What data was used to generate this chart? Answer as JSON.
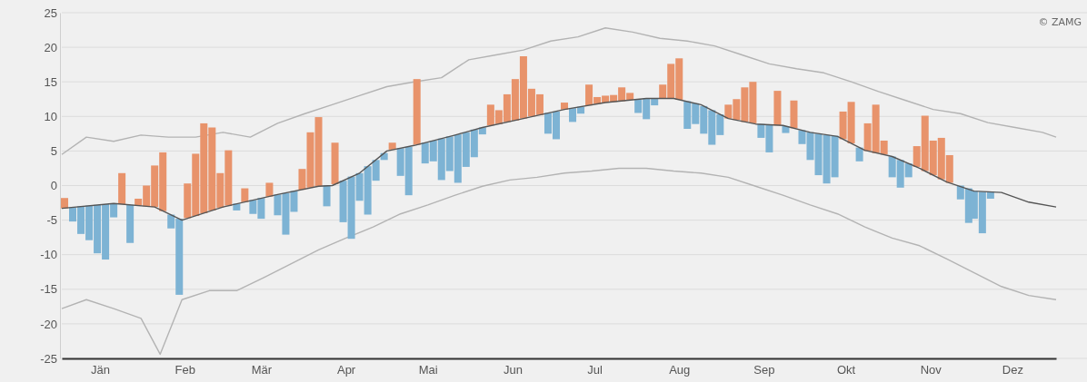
{
  "chart_data": {
    "type": "bar",
    "xlim": [
      "--01-01",
      "--12-31"
    ],
    "ylim": [
      -25,
      25
    ],
    "xticks": [
      {
        "value": "--01-15",
        "label": "Jän"
      },
      {
        "value": "--02-15",
        "label": "Feb"
      },
      {
        "value": "--03-15",
        "label": "Mär"
      },
      {
        "value": "--04-15",
        "label": "Apr"
      },
      {
        "value": "--05-15",
        "label": "Mai"
      },
      {
        "value": "--06-15",
        "label": "Jun"
      },
      {
        "value": "--07-15",
        "label": "Jul"
      },
      {
        "value": "--08-15",
        "label": "Aug"
      },
      {
        "value": "--09-15",
        "label": "Sep"
      },
      {
        "value": "--10-15",
        "label": "Okt"
      },
      {
        "value": "--11-15",
        "label": "Nov"
      },
      {
        "value": "--12-15",
        "label": "Dez"
      }
    ],
    "yticks": [
      25,
      20,
      15,
      10,
      5,
      0,
      -5,
      -10,
      -15,
      -20,
      -25
    ],
    "grid": "y",
    "annotations": [
      "© ZAMG"
    ],
    "series": [
      {
        "type": "line",
        "color": "#b3b3b3",
        "x": [
          "--01-01",
          "--01-10",
          "--01-20",
          "--01-30",
          "--02-09",
          "--02-19",
          "--03-01",
          "--03-11",
          "--03-21",
          "--03-31",
          "--04-10",
          "--04-20",
          "--04-30",
          "--05-10",
          "--05-20",
          "--05-30",
          "--06-09",
          "--06-19",
          "--06-29",
          "--07-09",
          "--07-19",
          "--07-29",
          "--08-08",
          "--08-18",
          "--08-28",
          "--09-07",
          "--09-17",
          "--09-27",
          "--10-07",
          "--10-17",
          "--10-27",
          "--11-06",
          "--11-16",
          "--11-26",
          "--12-06",
          "--12-16",
          "--12-26",
          "--12-31"
        ],
        "values": [
          4.5,
          7,
          6.4,
          7.3,
          7,
          7,
          7.7,
          7,
          9,
          10.4,
          11.7,
          13,
          14.3,
          15,
          15.6,
          18.2,
          18.9,
          19.6,
          20.9,
          21.5,
          22.8,
          22.2,
          21.3,
          20.9,
          20.2,
          18.9,
          17.6,
          16.9,
          16.3,
          15,
          13.6,
          12.3,
          11,
          10.4,
          9.1,
          8.4,
          7.7,
          7
        ]
      },
      {
        "type": "line",
        "color": "#b3b3b3",
        "x": [
          "--01-01",
          "--01-10",
          "--01-20",
          "--01-30",
          "--02-06",
          "--02-14",
          "--02-24",
          "--03-06",
          "--03-16",
          "--03-26",
          "--04-05",
          "--04-15",
          "--04-25",
          "--05-05",
          "--05-15",
          "--05-25",
          "--06-04",
          "--06-14",
          "--06-24",
          "--07-04",
          "--07-14",
          "--07-24",
          "--08-03",
          "--08-13",
          "--08-23",
          "--09-02",
          "--09-12",
          "--09-22",
          "--10-02",
          "--10-12",
          "--10-22",
          "--11-01",
          "--11-11",
          "--11-21",
          "--12-01",
          "--12-11",
          "--12-21",
          "--12-31"
        ],
        "values": [
          -17.8,
          -16.5,
          -17.8,
          -19.2,
          -24.4,
          -16.5,
          -15.2,
          -15.2,
          -13.3,
          -11.3,
          -9.3,
          -7.6,
          -6,
          -4.1,
          -2.8,
          -1.4,
          -0.1,
          0.8,
          1.2,
          1.8,
          2.1,
          2.5,
          2.5,
          2.1,
          1.8,
          1.2,
          -0.1,
          -1.4,
          -2.8,
          -4.1,
          -6,
          -7.6,
          -8.7,
          -10.6,
          -12.6,
          -14.6,
          -15.9,
          -16.5
        ]
      },
      {
        "color": "#e8936b",
        "x": [
          "--01-02",
          "--01-23",
          "--01-29",
          "--02-01",
          "--02-04",
          "--02-07",
          "--02-16",
          "--02-19",
          "--02-22",
          "--02-25",
          "--02-28",
          "--03-03",
          "--03-09",
          "--03-18",
          "--03-30",
          "--04-02",
          "--04-05",
          "--04-11",
          "--05-02",
          "--05-11",
          "--06-07",
          "--06-10",
          "--06-13",
          "--06-16",
          "--06-19",
          "--06-22",
          "--06-25",
          "--07-04",
          "--07-13",
          "--07-16",
          "--07-19",
          "--07-22",
          "--07-25",
          "--07-28",
          "--08-09",
          "--08-12",
          "--08-15",
          "--09-02",
          "--09-05",
          "--09-08",
          "--09-11",
          "--09-20",
          "--09-26",
          "--10-14",
          "--10-17",
          "--10-23",
          "--10-26",
          "--10-29",
          "--11-10",
          "--11-13",
          "--11-16",
          "--11-19",
          "--11-22"
        ],
        "base": [
          -3.3,
          -2.7,
          -2.9,
          -3.0,
          -3.1,
          -3.7,
          -4.7,
          -4.4,
          -4.0,
          -3.6,
          -3.2,
          -2.9,
          -2.4,
          -1.6,
          -0.6,
          -0.3,
          -0.1,
          0.2,
          5.2,
          5.9,
          8.7,
          8.9,
          9.2,
          9.4,
          9.7,
          10.0,
          10.2,
          11,
          11.6,
          11.8,
          12,
          12.1,
          12.2,
          12.4,
          12.6,
          12.6,
          12.4,
          9.7,
          9.5,
          9.2,
          9.0,
          8.7,
          8.3,
          6.7,
          6.1,
          5.0,
          4.7,
          4.5,
          2.7,
          2.1,
          1.5,
          0.9,
          0.4
        ],
        "values": [
          1.5,
          4.5,
          1,
          3,
          6,
          8.5,
          5,
          9,
          13,
          12,
          5,
          8,
          2,
          2,
          3,
          8,
          10,
          6,
          1,
          9.5,
          3,
          2,
          4,
          6,
          9,
          4,
          3,
          1,
          3,
          1,
          1,
          1,
          2,
          1,
          2,
          5,
          6,
          2,
          3,
          5,
          6,
          5,
          4,
          4,
          6,
          4,
          7,
          2,
          3,
          8,
          5,
          6,
          4
        ]
      },
      {
        "color": "#7db3d4",
        "x": [
          "--01-05",
          "--01-08",
          "--01-11",
          "--01-14",
          "--01-17",
          "--01-20",
          "--01-26",
          "--02-10",
          "--02-13",
          "--03-06",
          "--03-12",
          "--03-15",
          "--03-21",
          "--03-24",
          "--03-27",
          "--04-08",
          "--04-14",
          "--04-17",
          "--04-20",
          "--04-23",
          "--04-26",
          "--04-29",
          "--05-05",
          "--05-08",
          "--05-14",
          "--05-17",
          "--05-20",
          "--05-23",
          "--05-26",
          "--05-29",
          "--06-01",
          "--06-04",
          "--06-28",
          "--07-01",
          "--07-07",
          "--07-10",
          "--07-31",
          "--08-03",
          "--08-06",
          "--08-18",
          "--08-21",
          "--08-24",
          "--08-27",
          "--08-30",
          "--09-14",
          "--09-17",
          "--09-23",
          "--09-29",
          "--10-02",
          "--10-05",
          "--10-08",
          "--10-11",
          "--10-20",
          "--11-01",
          "--11-04",
          "--11-07",
          "--11-26",
          "--11-29",
          "--12-01",
          "--12-04",
          "--12-07"
        ],
        "base": [
          -3.2,
          -3.0,
          -2.9,
          -2.8,
          -2.7,
          -2.6,
          -2.8,
          -4.2,
          -4.8,
          -2.6,
          -2.1,
          -1.8,
          -1.3,
          -1.1,
          -0.8,
          0,
          0.7,
          1.3,
          1.8,
          2.8,
          3.7,
          4.7,
          5.4,
          5.6,
          6.2,
          6.5,
          6.8,
          7.1,
          7.4,
          7.7,
          8.1,
          8.4,
          10.5,
          10.7,
          11.2,
          11.4,
          12.5,
          12.6,
          12.6,
          12.2,
          11.9,
          11.5,
          10.9,
          10.3,
          8.9,
          8.8,
          8.6,
          8.0,
          7.7,
          7.5,
          7.3,
          7.2,
          5.5,
          4.2,
          3.7,
          3.2,
          0,
          -0.4,
          -0.8,
          -0.9,
          -0.9
        ],
        "values": [
          -2,
          -4,
          -5,
          -7,
          -8,
          -2,
          -5.5,
          -2,
          -11,
          -1,
          -2,
          -3,
          -3,
          -6,
          -3,
          -3,
          -6,
          -9,
          -4,
          -7,
          -3,
          -1,
          -4,
          -7,
          -3,
          -3,
          -6,
          -5,
          -7,
          -5,
          -4,
          -1,
          -3,
          -4,
          -2,
          -1,
          -2,
          -3,
          -1,
          -4,
          -3,
          -4,
          -5,
          -3,
          -2,
          -4,
          -1,
          -2,
          -4,
          -6,
          -7,
          -6,
          -2,
          -3,
          -4,
          -2,
          -2,
          -5,
          -4,
          -6,
          -1
        ]
      },
      {
        "type": "line",
        "color": "#555555",
        "x": [
          "--01-01",
          "--01-20",
          "--02-04",
          "--02-14",
          "--03-01",
          "--03-21",
          "--04-05",
          "--04-10",
          "--04-20",
          "--04-30",
          "--05-10",
          "--05-25",
          "--06-04",
          "--06-19",
          "--07-04",
          "--07-19",
          "--08-03",
          "--08-13",
          "--08-23",
          "--09-02",
          "--09-12",
          "--09-22",
          "--10-02",
          "--10-12",
          "--10-22",
          "--11-01",
          "--11-11",
          "--11-21",
          "--12-01",
          "--12-11",
          "--12-21",
          "--12-31"
        ],
        "values": [
          -3.3,
          -2.6,
          -3.1,
          -5,
          -3.1,
          -1.3,
          -0.1,
          0,
          1.8,
          5,
          5.8,
          7.3,
          8.4,
          9.7,
          11,
          12,
          12.6,
          12.6,
          11.7,
          9.7,
          8.9,
          8.7,
          7.7,
          7.1,
          5.1,
          4.2,
          2.5,
          0.5,
          -0.8,
          -1,
          -2.4,
          -3.1
        ]
      }
    ]
  }
}
